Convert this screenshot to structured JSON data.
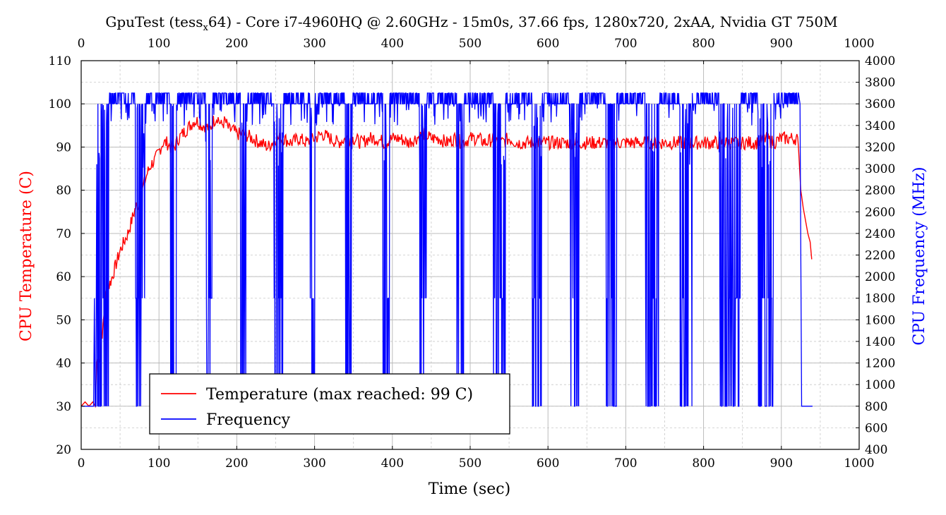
{
  "chart_data": {
    "type": "line",
    "title": {
      "prefix": "GpuTest (tess",
      "subscript": "x",
      "suffix": "64) - Core i7-4960HQ @ 2.60GHz - 15m0s, 37.66 fps, 1280x720, 2xAA, Nvidia GT 750M"
    },
    "xlabel": "Time (sec)",
    "ylabel_left": "CPU Temperature (C)",
    "ylabel_right": "CPU Frequency (MHz)",
    "xlim": [
      0,
      1000
    ],
    "ylim_left": [
      20,
      110
    ],
    "ylim_right": [
      400,
      4000
    ],
    "x_ticks": [
      "0",
      "100",
      "200",
      "300",
      "400",
      "500",
      "600",
      "700",
      "800",
      "900",
      "1000"
    ],
    "y_left_ticks": [
      "20",
      "30",
      "40",
      "50",
      "60",
      "70",
      "80",
      "90",
      "100",
      "110"
    ],
    "y_right_ticks": [
      "400",
      "600",
      "800",
      "1000",
      "1200",
      "1400",
      "1600",
      "1800",
      "2000",
      "2200",
      "2400",
      "2600",
      "2800",
      "3000",
      "3200",
      "3400",
      "3600",
      "3800",
      "4000"
    ],
    "grid": true,
    "legend_position": "bottom-left",
    "series": [
      {
        "name": "Temperature (max reached: 99 C)",
        "axis": "left",
        "color": "#ff0000",
        "points": [
          [
            0,
            30
          ],
          [
            5,
            31
          ],
          [
            10,
            30
          ],
          [
            15,
            31
          ],
          [
            18,
            30
          ],
          [
            20,
            40
          ],
          [
            22,
            42
          ],
          [
            24,
            41
          ],
          [
            26,
            46
          ],
          [
            28,
            48
          ],
          [
            30,
            53
          ],
          [
            33,
            57
          ],
          [
            36,
            58
          ],
          [
            40,
            60
          ],
          [
            45,
            63
          ],
          [
            50,
            66
          ],
          [
            55,
            68
          ],
          [
            60,
            70
          ],
          [
            65,
            73
          ],
          [
            70,
            76
          ],
          [
            75,
            77
          ],
          [
            80,
            81
          ],
          [
            85,
            84
          ],
          [
            90,
            86
          ],
          [
            95,
            87
          ],
          [
            100,
            89
          ],
          [
            105,
            91
          ],
          [
            110,
            91
          ],
          [
            115,
            90
          ],
          [
            120,
            90
          ],
          [
            125,
            92
          ],
          [
            130,
            93
          ],
          [
            135,
            94
          ],
          [
            140,
            95
          ],
          [
            145,
            96
          ],
          [
            150,
            96
          ],
          [
            155,
            95
          ],
          [
            160,
            95
          ],
          [
            165,
            94
          ],
          [
            170,
            96
          ],
          [
            175,
            97
          ],
          [
            180,
            95
          ],
          [
            185,
            96
          ],
          [
            190,
            94
          ],
          [
            195,
            94
          ],
          [
            200,
            93
          ],
          [
            210,
            93
          ],
          [
            220,
            92
          ],
          [
            230,
            91
          ],
          [
            240,
            90
          ],
          [
            250,
            92
          ],
          [
            260,
            92
          ],
          [
            270,
            91
          ],
          [
            280,
            92
          ],
          [
            290,
            91
          ],
          [
            300,
            92
          ],
          [
            310,
            93
          ],
          [
            320,
            92
          ],
          [
            330,
            91
          ],
          [
            340,
            92
          ],
          [
            350,
            92
          ],
          [
            360,
            91
          ],
          [
            370,
            92
          ],
          [
            380,
            92
          ],
          [
            390,
            91
          ],
          [
            400,
            92
          ],
          [
            410,
            92
          ],
          [
            420,
            91
          ],
          [
            430,
            92
          ],
          [
            440,
            93
          ],
          [
            450,
            92
          ],
          [
            460,
            92
          ],
          [
            470,
            91
          ],
          [
            480,
            92
          ],
          [
            490,
            91
          ],
          [
            500,
            92
          ],
          [
            510,
            92
          ],
          [
            520,
            91
          ],
          [
            530,
            92
          ],
          [
            540,
            91
          ],
          [
            550,
            92
          ],
          [
            560,
            91
          ],
          [
            570,
            91
          ],
          [
            580,
            91
          ],
          [
            590,
            91
          ],
          [
            600,
            91
          ],
          [
            610,
            91
          ],
          [
            620,
            91
          ],
          [
            630,
            91
          ],
          [
            640,
            91
          ],
          [
            650,
            91
          ],
          [
            660,
            91
          ],
          [
            670,
            91
          ],
          [
            680,
            91
          ],
          [
            690,
            91
          ],
          [
            700,
            91
          ],
          [
            710,
            91
          ],
          [
            720,
            91
          ],
          [
            730,
            91
          ],
          [
            740,
            91
          ],
          [
            750,
            91
          ],
          [
            760,
            91
          ],
          [
            770,
            91
          ],
          [
            780,
            91
          ],
          [
            790,
            91
          ],
          [
            800,
            91
          ],
          [
            810,
            91
          ],
          [
            820,
            91
          ],
          [
            830,
            91
          ],
          [
            840,
            91
          ],
          [
            850,
            91
          ],
          [
            860,
            91
          ],
          [
            870,
            91
          ],
          [
            880,
            92
          ],
          [
            890,
            91
          ],
          [
            900,
            92
          ],
          [
            910,
            92
          ],
          [
            920,
            92
          ],
          [
            922,
            90
          ],
          [
            925,
            80
          ],
          [
            928,
            76
          ],
          [
            931,
            73
          ],
          [
            934,
            70
          ],
          [
            937,
            68
          ],
          [
            939,
            64
          ]
        ]
      },
      {
        "name": "Frequency",
        "axis": "right",
        "color": "#0000ff",
        "base": 3600,
        "max": 3700,
        "min": 800,
        "start": [
          [
            0,
            800
          ],
          [
            16,
            800
          ],
          [
            17,
            1800
          ],
          [
            18,
            800
          ],
          [
            19,
            800
          ]
        ],
        "end": [
          [
            924,
            3600
          ],
          [
            926,
            800
          ],
          [
            940,
            800
          ]
        ],
        "active_range": [
          20,
          922
        ],
        "dips": [
          [
            20,
            35
          ],
          [
            70,
            82
          ],
          [
            115,
            122
          ],
          [
            160,
            168
          ],
          [
            205,
            212
          ],
          [
            248,
            260
          ],
          [
            294,
            300
          ],
          [
            340,
            348
          ],
          [
            388,
            396
          ],
          [
            435,
            444
          ],
          [
            483,
            492
          ],
          [
            530,
            545
          ],
          [
            580,
            592
          ],
          [
            628,
            640
          ],
          [
            675,
            688
          ],
          [
            725,
            742
          ],
          [
            770,
            785
          ],
          [
            820,
            848
          ],
          [
            870,
            890
          ]
        ]
      }
    ]
  }
}
